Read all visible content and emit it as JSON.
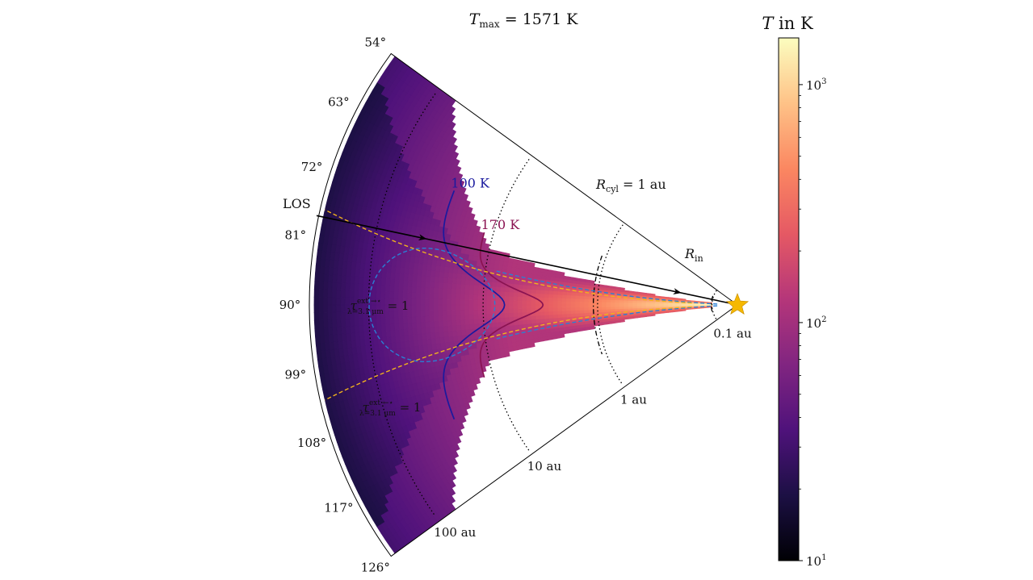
{
  "chart_data": {
    "type": "heatmap",
    "title": "T_max = 1571 K",
    "title_parts": {
      "main": "T",
      "sub": "max",
      "rest": " = 1571 K"
    },
    "geometry": "polar wedge, radius logarithmic in distance from star",
    "theta_range_deg": [
      54,
      126
    ],
    "theta_ticks": [
      "54°",
      "63°",
      "72°",
      "81°",
      "90°",
      "99°",
      "108°",
      "117°",
      "126°"
    ],
    "theta_tick_values": [
      54,
      63,
      72,
      81,
      90,
      99,
      108,
      117,
      126
    ],
    "radial_unit": "au",
    "radial_range_au": [
      0.06,
      330
    ],
    "radial_tick_labels": [
      "0.1 au",
      "1 au",
      "10 au",
      "100 au"
    ],
    "radial_tick_values": [
      0.1,
      1,
      10,
      100
    ],
    "colorbar": {
      "label": "T in K",
      "label_parts": {
        "var": "T",
        "rest": " in K"
      },
      "scale": "log",
      "range": [
        10,
        1571
      ],
      "ticks": [
        {
          "value": 10,
          "base": "10",
          "exp": "1"
        },
        {
          "value": 100,
          "base": "10",
          "exp": "2"
        },
        {
          "value": 1000,
          "base": "10",
          "exp": "3"
        }
      ],
      "colormap": "magma"
    },
    "temperature_field": {
      "inner_edge_au": 0.1,
      "outer_edge_au": 300,
      "midplane_T_at_inner_K": 1571,
      "outer_T_K": 18,
      "surface_layer_T_K": 100,
      "disk_opening_half_angle_at_inner_deg": 2.5,
      "disk_opening_half_angle_at_10au_deg": 8,
      "disk_opening_half_angle_at_outer_deg": 36
    },
    "contours": [
      {
        "label": "100 K",
        "value": 100,
        "color": "#1a1a9e",
        "midplane_r_au": 6.5,
        "surface_r_au": 28,
        "edge_theta_deg": 68
      },
      {
        "label": "170 K",
        "value": 170,
        "color": "#8a1352",
        "midplane_r_au": 3.0,
        "surface_r_au": 12,
        "edge_theta_deg": 74
      }
    ],
    "annotations": {
      "r_cyl": {
        "label": "R_cyl = 1 au",
        "parts": {
          "var": "R",
          "sub": "cyl",
          "rest": " = 1 au"
        },
        "value_au": 1
      },
      "r_in": {
        "label": "R_in",
        "parts": {
          "var": "R",
          "sub": "in"
        },
        "value_au": 0.1
      },
      "los": {
        "label": "LOS",
        "theta_deg": 78,
        "color": "#000000"
      },
      "tau_star_to_obs": {
        "label": "τ^{ext →⋆}_{λ=3.1 μm} = 1",
        "parts": {
          "tau": "τ",
          "sup": "ext →⋆",
          "sub": "λ=3.1 μm",
          "rest": " = 1"
        },
        "color": "#2a7fd4",
        "description": "loop between θ≈80° and θ≈100°, centered ~25 au, plus line toward star"
      },
      "tau_obs_to_star": {
        "label": "τ^{ext ←⋆}_{λ=3.1 μm} = 1",
        "parts": {
          "tau": "τ",
          "sup": "ext ←⋆",
          "sub": "λ=3.1 μm",
          "rest": " = 1"
        },
        "color": "#f2b21c",
        "description": "two lines from outer edge at 77°/103° converging to disk surface"
      }
    },
    "star": {
      "color": "#f5b800"
    },
    "dotted_circles_au": [
      0.1,
      1,
      10,
      100
    ],
    "dashdot_circles_au": [
      0.1,
      1
    ],
    "grid": false
  }
}
